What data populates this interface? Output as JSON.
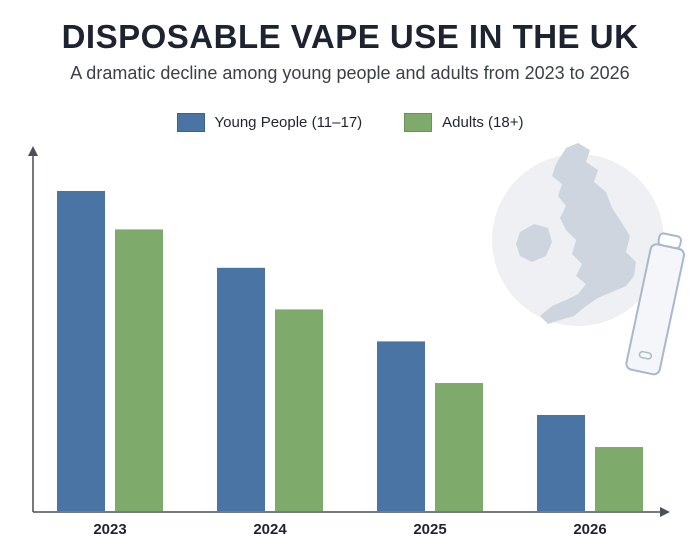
{
  "chart_data": {
    "type": "bar",
    "title": "DISPOSABLE VAPE USE IN THE UK",
    "subtitle": "A dramatic decline among young people and adults from 2023 to 2026",
    "categories": [
      "2023",
      "2024",
      "2025",
      "2026"
    ],
    "series": [
      {
        "name": "Young People (11–17)",
        "color": "#4a74a3",
        "values": [
          100,
          76,
          53,
          30
        ]
      },
      {
        "name": "Adults (18+)",
        "color": "#7eaa6c",
        "values": [
          88,
          63,
          40,
          20
        ]
      }
    ],
    "ylim": [
      0,
      110
    ],
    "xlabel": "",
    "ylabel": "",
    "grid": false,
    "legend_position": "top-center"
  },
  "decoration": {
    "icons": [
      "uk-map-icon",
      "disposable-vape-icon"
    ]
  }
}
